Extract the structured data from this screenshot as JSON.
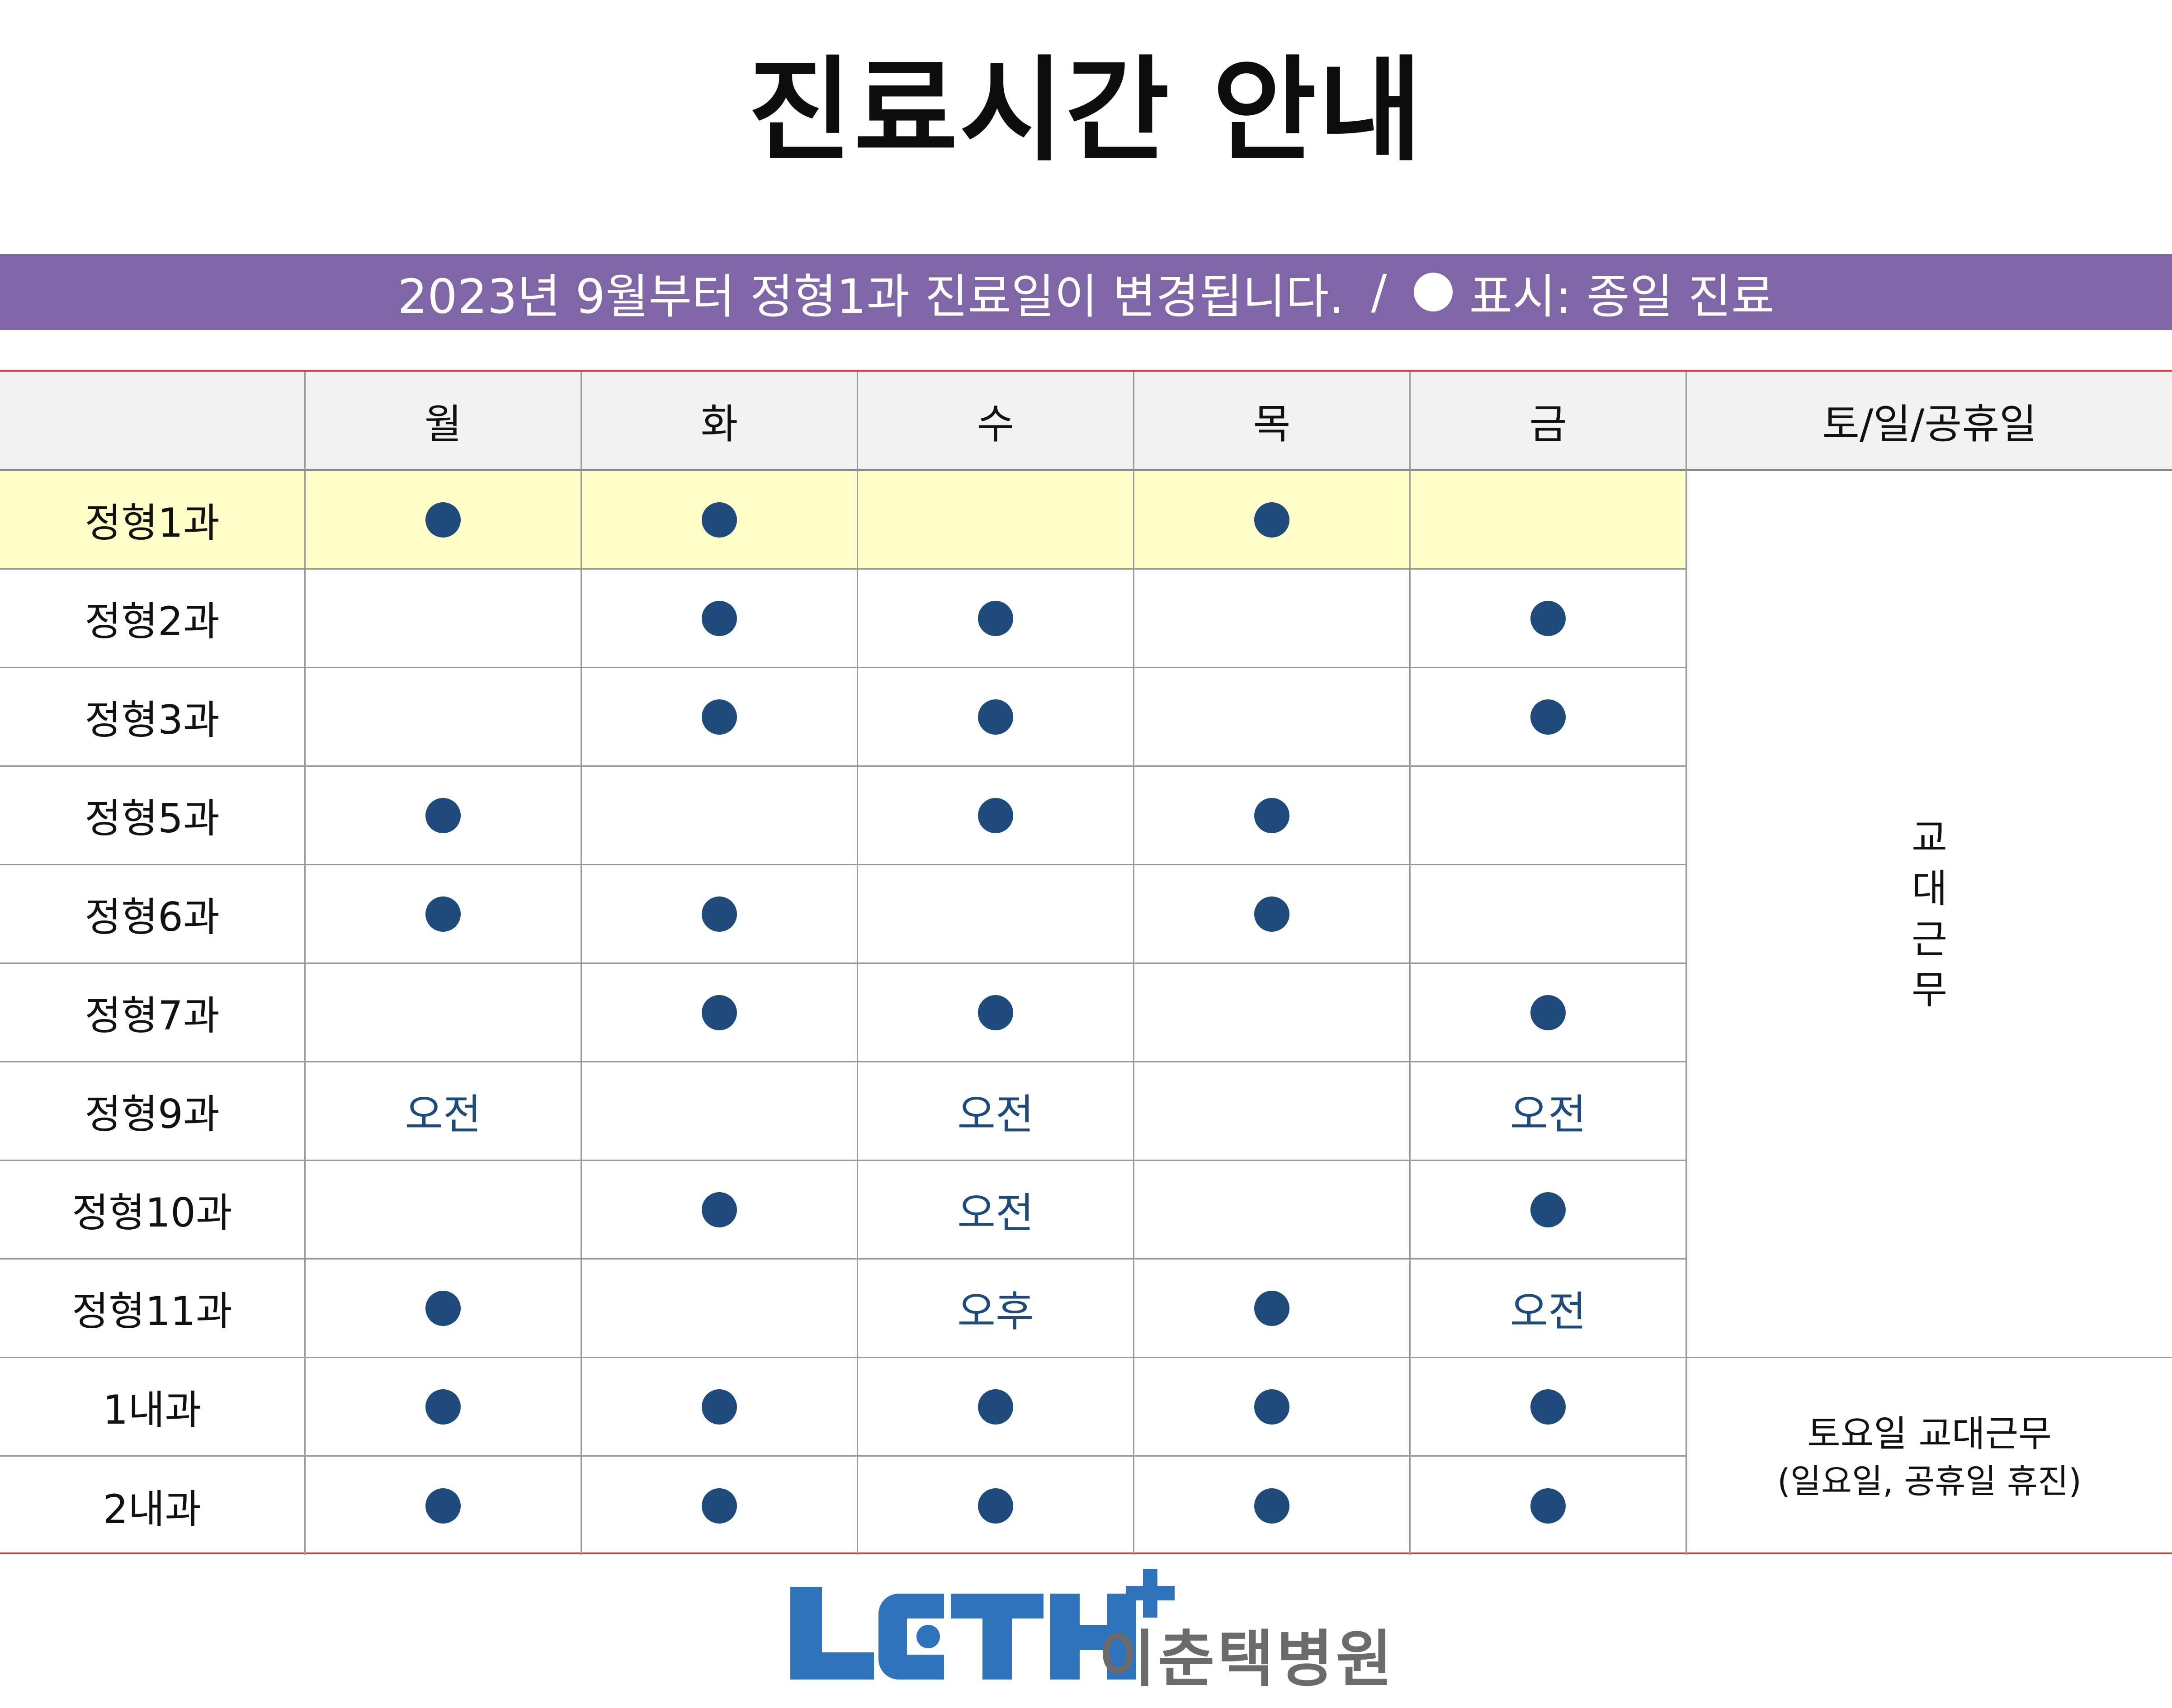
{
  "title": "진료시간 안내",
  "notice": {
    "text": "2023년 9월부터 정형1과 진료일이 변경됩니다.",
    "separator": "/",
    "legend_text": "표시: 종일 진료",
    "bar_color": "#7f66a6"
  },
  "table": {
    "headers": [
      "",
      "월",
      "화",
      "수",
      "목",
      "금",
      "토/일/공휴일"
    ],
    "rows": [
      {
        "label": "정형1과",
        "highlight": true,
        "cells": [
          "dot",
          "dot",
          "",
          "dot",
          ""
        ]
      },
      {
        "label": "정형2과",
        "highlight": false,
        "cells": [
          "",
          "dot",
          "dot",
          "",
          "dot"
        ]
      },
      {
        "label": "정형3과",
        "highlight": false,
        "cells": [
          "",
          "dot",
          "dot",
          "",
          "dot"
        ]
      },
      {
        "label": "정형5과",
        "highlight": false,
        "cells": [
          "dot",
          "",
          "dot",
          "dot",
          ""
        ]
      },
      {
        "label": "정형6과",
        "highlight": false,
        "cells": [
          "dot",
          "dot",
          "",
          "dot",
          ""
        ]
      },
      {
        "label": "정형7과",
        "highlight": false,
        "cells": [
          "",
          "dot",
          "dot",
          "",
          "dot"
        ]
      },
      {
        "label": "정형9과",
        "highlight": false,
        "cells": [
          "오전",
          "",
          "오전",
          "",
          "오전"
        ]
      },
      {
        "label": "정형10과",
        "highlight": false,
        "cells": [
          "",
          "dot",
          "오전",
          "",
          "dot"
        ]
      },
      {
        "label": "정형11과",
        "highlight": false,
        "cells": [
          "dot",
          "",
          "오후",
          "dot",
          "오전"
        ]
      },
      {
        "label": "1내과",
        "highlight": false,
        "cells": [
          "dot",
          "dot",
          "dot",
          "dot",
          "dot"
        ]
      },
      {
        "label": "2내과",
        "highlight": false,
        "cells": [
          "dot",
          "dot",
          "dot",
          "dot",
          "dot"
        ]
      }
    ],
    "weekend_note_orthopedics": "교대근무",
    "weekend_note_internal_line1": "토요일 교대근무",
    "weekend_note_internal_line2": "(일요일, 공휴일 휴진)",
    "dot_color": "#1f4a7c",
    "highlight_color": "#fefec8"
  },
  "footer": {
    "logo_text": "LCTH",
    "logo_plus": "+",
    "hospital_name": "이춘택병원",
    "logo_color": "#2f73bd"
  }
}
